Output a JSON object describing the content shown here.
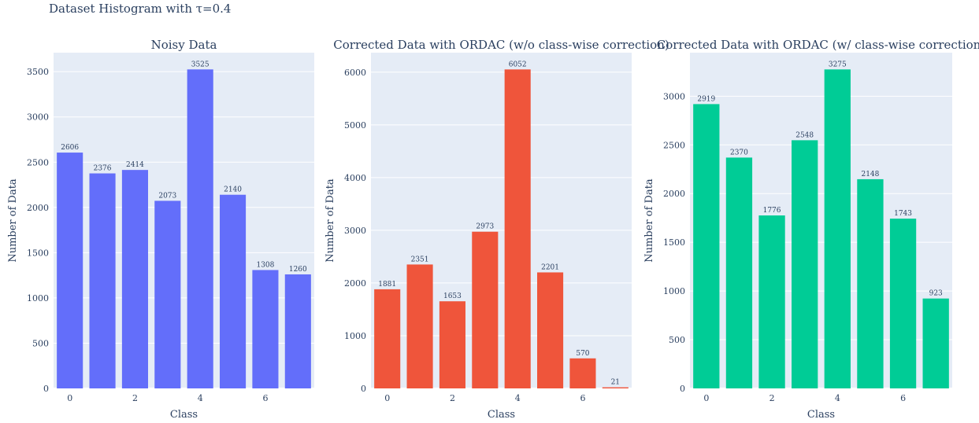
{
  "figure_title": "Dataset Histogram with τ=0.4",
  "chart_data": [
    {
      "type": "bar",
      "title": "Noisy Data",
      "xlabel": "Class",
      "ylabel": "Number of Data",
      "categories": [
        0,
        1,
        2,
        3,
        4,
        5,
        6,
        7
      ],
      "values": [
        2606,
        2376,
        2414,
        2073,
        3525,
        2140,
        1308,
        1260
      ],
      "x_ticks": [
        0,
        2,
        4,
        6
      ],
      "y_ticks": [
        0,
        500,
        1000,
        1500,
        2000,
        2500,
        3000,
        3500
      ],
      "ylim": [
        0,
        3710
      ],
      "color": "#636efa",
      "grid": true
    },
    {
      "type": "bar",
      "title": "Corrected Data with ORDAC (w/o class-wise correction)",
      "xlabel": "Class",
      "ylabel": "Number of Data",
      "categories": [
        0,
        1,
        2,
        3,
        4,
        5,
        6,
        7
      ],
      "values": [
        1881,
        2351,
        1653,
        2973,
        6052,
        2201,
        570,
        21
      ],
      "x_ticks": [
        0,
        2,
        4,
        6
      ],
      "y_ticks": [
        0,
        1000,
        2000,
        3000,
        4000,
        5000,
        6000
      ],
      "ylim": [
        0,
        6370
      ],
      "color": "#ef553b",
      "grid": true
    },
    {
      "type": "bar",
      "title": "Corrected Data with ORDAC (w/ class-wise correction)",
      "xlabel": "Class",
      "ylabel": "Number of Data",
      "categories": [
        0,
        1,
        2,
        3,
        4,
        5,
        6,
        7
      ],
      "values": [
        2919,
        2370,
        1776,
        2548,
        3275,
        2148,
        1743,
        923
      ],
      "x_ticks": [
        0,
        2,
        4,
        6
      ],
      "y_ticks": [
        0,
        500,
        1000,
        1500,
        2000,
        2500,
        3000
      ],
      "ylim": [
        0,
        3447
      ],
      "color": "#00cc96",
      "grid": true
    }
  ]
}
